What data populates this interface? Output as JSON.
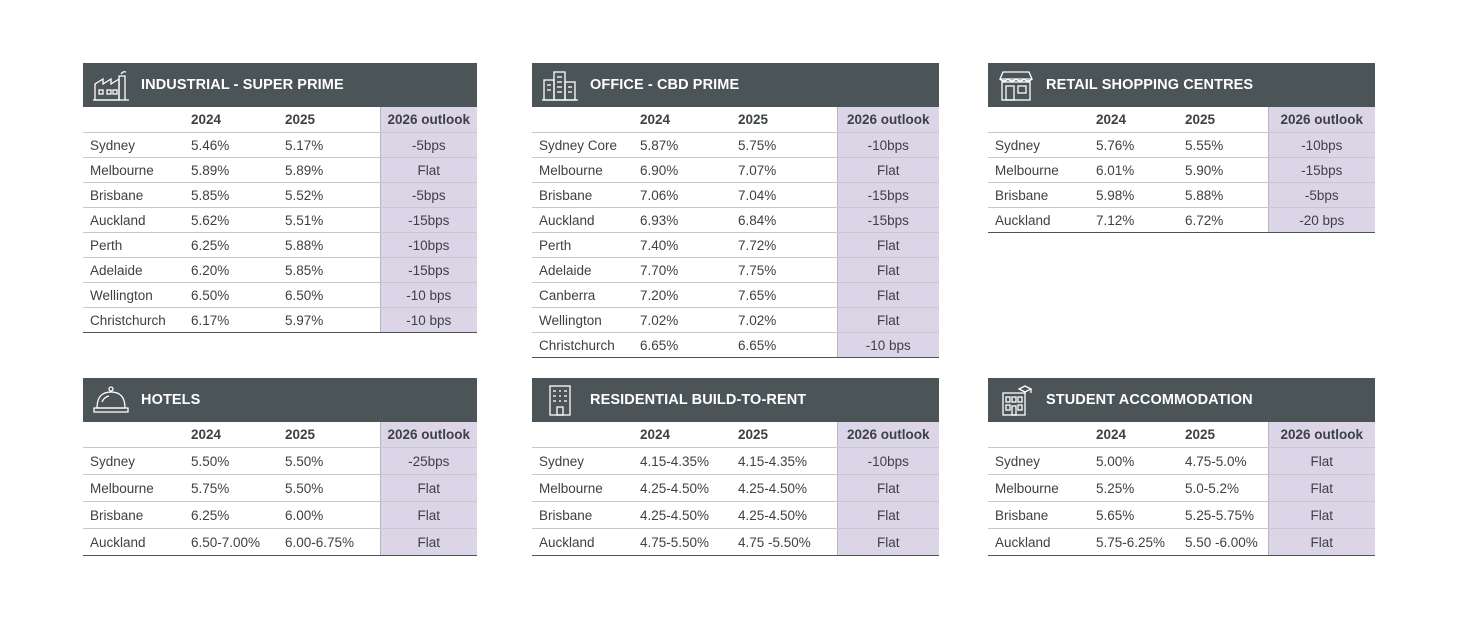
{
  "colors": {
    "header_bg": "#4b5456",
    "outlook_bg": "#dcd5e7",
    "text": "#3c4145"
  },
  "panels": [
    {
      "title": "INDUSTRIAL - SUPER PRIME",
      "icon": "factory-icon",
      "columns": [
        "",
        "2024",
        "2025",
        "2026 outlook"
      ],
      "rows": [
        [
          "Sydney",
          "5.46%",
          "5.17%",
          "-5bps"
        ],
        [
          "Melbourne",
          "5.89%",
          "5.89%",
          "Flat"
        ],
        [
          "Brisbane",
          "5.85%",
          "5.52%",
          "-5bps"
        ],
        [
          "Auckland",
          "5.62%",
          "5.51%",
          "-15bps"
        ],
        [
          "Perth",
          "6.25%",
          "5.88%",
          "-10bps"
        ],
        [
          "Adelaide",
          "6.20%",
          "5.85%",
          "-15bps"
        ],
        [
          "Wellington",
          "6.50%",
          "6.50%",
          "-10 bps"
        ],
        [
          "Christchurch",
          "6.17%",
          "5.97%",
          "-10 bps"
        ]
      ]
    },
    {
      "title": "OFFICE - CBD PRIME",
      "icon": "office-buildings-icon",
      "columns": [
        "",
        "2024",
        "2025",
        "2026 outlook"
      ],
      "rows": [
        [
          "Sydney Core",
          "5.87%",
          "5.75%",
          "-10bps"
        ],
        [
          "Melbourne",
          "6.90%",
          "7.07%",
          "Flat"
        ],
        [
          "Brisbane",
          "7.06%",
          "7.04%",
          "-15bps"
        ],
        [
          "Auckland",
          "6.93%",
          "6.84%",
          "-15bps"
        ],
        [
          "Perth",
          "7.40%",
          "7.72%",
          "Flat"
        ],
        [
          "Adelaide",
          "7.70%",
          "7.75%",
          "Flat"
        ],
        [
          "Canberra",
          "7.20%",
          "7.65%",
          "Flat"
        ],
        [
          "Wellington",
          "7.02%",
          "7.02%",
          "Flat"
        ],
        [
          "Christchurch",
          "6.65%",
          "6.65%",
          "-10 bps"
        ]
      ]
    },
    {
      "title": "RETAIL SHOPPING CENTRES",
      "icon": "storefront-icon",
      "columns": [
        "",
        "2024",
        "2025",
        "2026 outlook"
      ],
      "rows": [
        [
          "Sydney",
          "5.76%",
          "5.55%",
          "-10bps"
        ],
        [
          "Melbourne",
          "6.01%",
          "5.90%",
          "-15bps"
        ],
        [
          "Brisbane",
          "5.98%",
          "5.88%",
          "-5bps"
        ],
        [
          "Auckland",
          "7.12%",
          "6.72%",
          "-20 bps"
        ]
      ]
    },
    {
      "title": "HOTELS",
      "icon": "service-bell-icon",
      "columns": [
        "",
        "2024",
        "2025",
        "2026 outlook"
      ],
      "rows": [
        [
          "Sydney",
          "5.50%",
          "5.50%",
          "-25bps"
        ],
        [
          "Melbourne",
          "5.75%",
          "5.50%",
          "Flat"
        ],
        [
          "Brisbane",
          "6.25%",
          "6.00%",
          "Flat"
        ],
        [
          "Auckland",
          "6.50-7.00%",
          "6.00-6.75%",
          "Flat"
        ]
      ]
    },
    {
      "title": "RESIDENTIAL BUILD-TO-RENT",
      "icon": "apartment-tower-icon",
      "columns": [
        "",
        "2024",
        "2025",
        "2026 outlook"
      ],
      "rows": [
        [
          "Sydney",
          "4.15-4.35%",
          "4.15-4.35%",
          "-10bps"
        ],
        [
          "Melbourne",
          "4.25-4.50%",
          "4.25-4.50%",
          "Flat"
        ],
        [
          "Brisbane",
          "4.25-4.50%",
          "4.25-4.50%",
          "Flat"
        ],
        [
          "Auckland",
          "4.75-5.50%",
          "4.75 -5.50%",
          "Flat"
        ]
      ]
    },
    {
      "title": "STUDENT ACCOMMODATION",
      "icon": "student-building-icon",
      "columns": [
        "",
        "2024",
        "2025",
        "2026 outlook"
      ],
      "rows": [
        [
          "Sydney",
          "5.00%",
          "4.75-5.0%",
          "Flat"
        ],
        [
          "Melbourne",
          "5.25%",
          "5.0-5.2%",
          "Flat"
        ],
        [
          "Brisbane",
          "5.65%",
          "5.25-5.75%",
          "Flat"
        ],
        [
          "Auckland",
          "5.75-6.25%",
          "5.50 -6.00%",
          "Flat"
        ]
      ]
    }
  ]
}
